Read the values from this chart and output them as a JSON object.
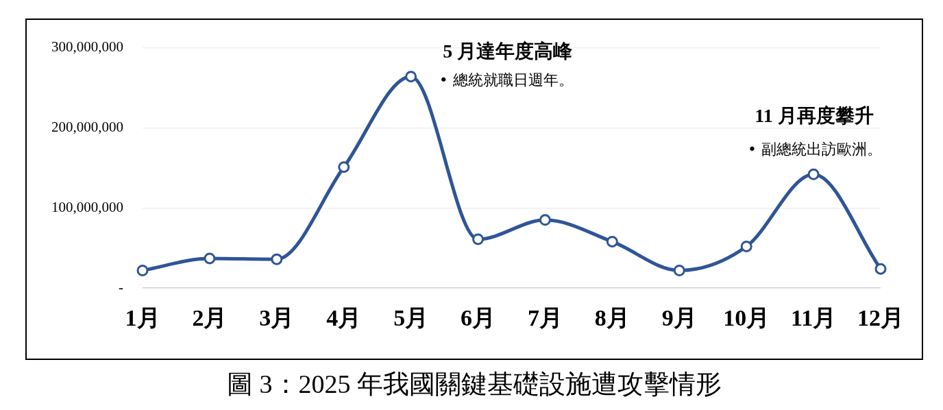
{
  "chart_data": {
    "type": "line",
    "title": "圖 3：2025 年我國關鍵基礎設施遭攻擊情形",
    "categories": [
      "1月",
      "2月",
      "3月",
      "4月",
      "5月",
      "6月",
      "7月",
      "8月",
      "9月",
      "10月",
      "11月",
      "12月"
    ],
    "series": [
      {
        "color": "#2f5597",
        "values": [
          22000000,
          37000000,
          36000000,
          151000000,
          264000000,
          61000000,
          85000000,
          58000000,
          22000000,
          52000000,
          142000000,
          24000000
        ]
      }
    ],
    "ylim": [
      0,
      300000000
    ],
    "yticks": [
      {
        "value": 0,
        "label": "-"
      },
      {
        "value": 100000000,
        "label": "100,000,000"
      },
      {
        "value": 200000000,
        "label": "200,000,000"
      },
      {
        "value": 300000000,
        "label": "300,000,000"
      }
    ],
    "grid": "y",
    "marker": "circle",
    "line_style": "solid",
    "legend": false,
    "annotations": [
      {
        "text": "5 月達年度高峰",
        "x": "5月",
        "y": 264000000
      },
      {
        "text": "• 總統就職日週年。",
        "x": "5月",
        "y": 264000000
      },
      {
        "text": "11 月再度攀升",
        "x": "11月",
        "y": 142000000
      },
      {
        "text": "• 副總統出訪歐洲。",
        "x": "11月",
        "y": 142000000
      }
    ]
  }
}
